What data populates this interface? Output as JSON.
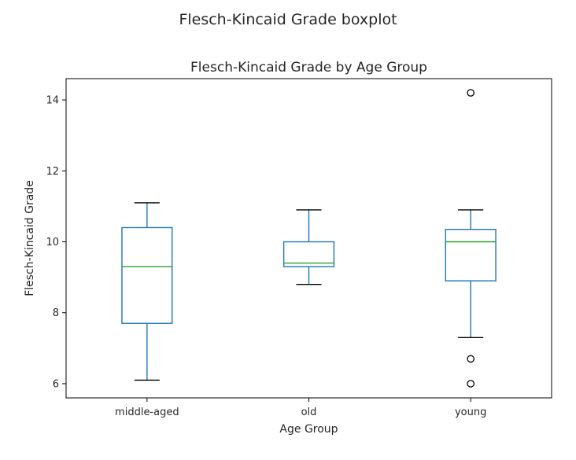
{
  "figure": {
    "suptitle": "Flesch-Kincaid Grade boxplot"
  },
  "chart_data": {
    "type": "boxplot",
    "title": "Flesch-Kincaid Grade by Age Group",
    "xlabel": "Age Group",
    "ylabel": "Flesch-Kincaid Grade",
    "ylim": [
      5.6,
      14.6
    ],
    "yticks": [
      6,
      8,
      10,
      12,
      14
    ],
    "grid": false,
    "categories": [
      "middle-aged",
      "old",
      "young"
    ],
    "boxes": [
      {
        "category": "middle-aged",
        "whisker_low": 6.1,
        "q1": 7.7,
        "median": 9.3,
        "q3": 10.4,
        "whisker_high": 11.1,
        "outliers": []
      },
      {
        "category": "old",
        "whisker_low": 8.8,
        "q1": 9.3,
        "median": 9.4,
        "q3": 10.0,
        "whisker_high": 10.9,
        "outliers": []
      },
      {
        "category": "young",
        "whisker_low": 7.3,
        "q1": 8.9,
        "median": 10.0,
        "q3": 10.35,
        "whisker_high": 10.9,
        "outliers": [
          6.0,
          6.7,
          14.2
        ]
      }
    ],
    "colors": {
      "box": "#1f77b4",
      "median": "#2ca02c",
      "cap": "#000000",
      "outlier": "#000000"
    }
  }
}
